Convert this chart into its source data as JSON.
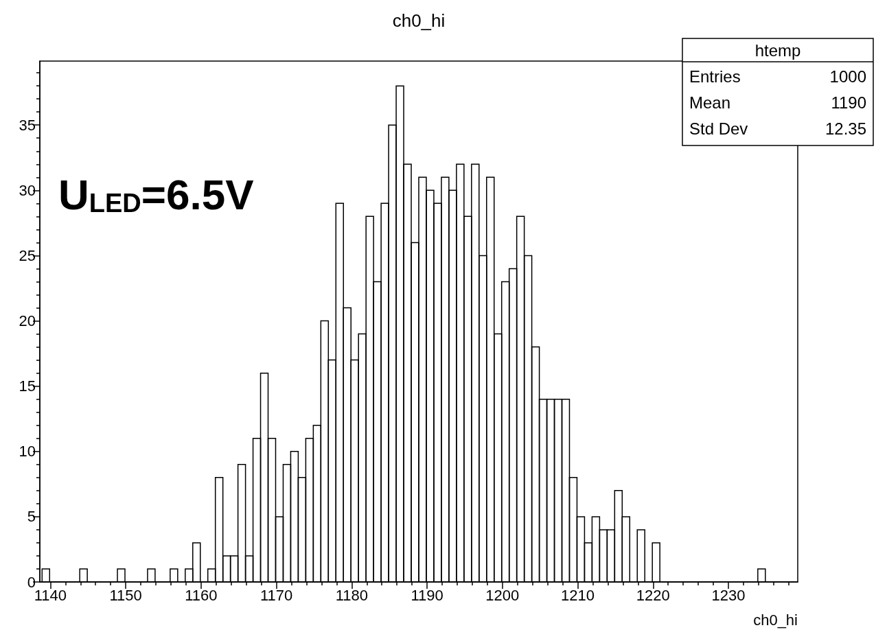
{
  "chart_data": {
    "type": "histogram",
    "title": "ch0_hi",
    "xlabel": "ch0_hi",
    "color": "#000000",
    "bins": [
      1138.9,
      1139.9,
      1140.9,
      1141.9,
      1142.9,
      1143.9,
      1144.9,
      1145.9,
      1146.9,
      1147.9,
      1148.9,
      1149.9,
      1150.9,
      1151.9,
      1152.9,
      1153.9,
      1154.9,
      1155.9,
      1156.9,
      1157.9,
      1158.9,
      1159.9,
      1160.9,
      1161.9,
      1162.9,
      1163.9,
      1164.9,
      1165.9,
      1166.9,
      1167.9,
      1168.9,
      1169.9,
      1170.9,
      1171.9,
      1172.9,
      1173.9,
      1174.9,
      1175.9,
      1176.9,
      1177.9,
      1178.9,
      1179.9,
      1180.9,
      1181.9,
      1182.9,
      1183.9,
      1184.9,
      1185.9,
      1186.9,
      1187.9,
      1188.9,
      1189.9,
      1190.9,
      1191.9,
      1192.9,
      1193.9,
      1194.9,
      1195.9,
      1196.9,
      1197.9,
      1198.9,
      1199.9,
      1200.9,
      1201.9,
      1202.9,
      1203.9,
      1204.9,
      1205.9,
      1206.9,
      1207.9,
      1208.9,
      1209.9,
      1210.9,
      1211.9,
      1212.9,
      1213.9,
      1214.9,
      1215.9,
      1216.9,
      1217.9,
      1218.9,
      1219.9,
      1220.9,
      1221.9,
      1222.9,
      1223.9,
      1224.9,
      1225.9,
      1226.9,
      1227.9,
      1228.9,
      1229.9,
      1230.9,
      1231.9,
      1232.9,
      1233.9,
      1234.9,
      1235.9,
      1236.9,
      1237.9,
      1238.9
    ],
    "values": [
      1,
      0,
      0,
      0,
      0,
      1,
      0,
      0,
      0,
      0,
      1,
      0,
      0,
      0,
      1,
      0,
      0,
      1,
      0,
      1,
      3,
      0,
      1,
      8,
      2,
      2,
      9,
      2,
      11,
      16,
      11,
      5,
      9,
      10,
      8,
      11,
      12,
      20,
      17,
      29,
      21,
      17,
      19,
      28,
      23,
      29,
      35,
      38,
      32,
      26,
      31,
      30,
      29,
      31,
      30,
      32,
      28,
      32,
      25,
      31,
      19,
      23,
      24,
      28,
      25,
      18,
      14,
      14,
      14,
      14,
      8,
      5,
      3,
      5,
      4,
      4,
      7,
      5,
      0,
      4,
      0,
      3,
      0,
      0,
      0,
      0,
      0,
      0,
      0,
      0,
      0,
      0,
      0,
      0,
      0,
      1,
      0,
      0,
      0,
      0
    ],
    "xlim": [
      1138.6,
      1239.2
    ],
    "ylim": [
      0,
      39.9
    ],
    "xticks": [
      1140,
      1150,
      1160,
      1170,
      1180,
      1190,
      1200,
      1210,
      1220,
      1230
    ],
    "yticks": [
      0,
      5,
      10,
      15,
      20,
      25,
      30,
      35
    ],
    "annotations": [
      "U$_{LED}$=6.5V",
      "htemp",
      "Entries 1000",
      "Mean 1190",
      "Std Dev 12.35"
    ]
  }
}
